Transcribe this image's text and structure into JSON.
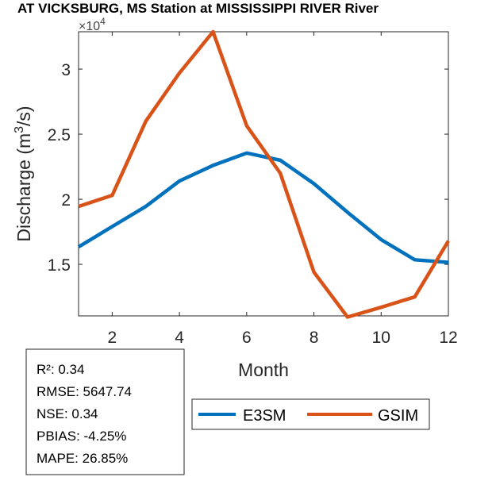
{
  "chart_data": {
    "type": "line",
    "title": "AT VICKSBURG, MS  Station at  MISSISSIPPI RIVER  River",
    "xlabel": "Month",
    "ylabel": "Discharge (m³/s)",
    "ylabel_parts": {
      "pre": "Discharge (m",
      "sup": "3",
      "post": "/s)"
    },
    "y_exponent": "×10",
    "y_exponent_power": "4",
    "xlim": [
      1,
      12
    ],
    "ylim": [
      11040,
      32870
    ],
    "xticks": [
      2,
      4,
      6,
      8,
      10,
      12
    ],
    "yticks": [
      15000,
      20000,
      25000,
      30000
    ],
    "ytick_labels": [
      "1.5",
      "2",
      "2.5",
      "3"
    ],
    "grid": false,
    "legend_position": "bottom",
    "x": [
      1,
      2,
      3,
      4,
      5,
      6,
      7,
      8,
      9,
      10,
      11,
      12
    ],
    "series": [
      {
        "name": "E3SM",
        "color": "#0072BD",
        "values": [
          16340,
          17900,
          19450,
          21400,
          22600,
          23550,
          23000,
          21200,
          19000,
          16900,
          15350,
          15150
        ]
      },
      {
        "name": "GSIM",
        "color": "#D95319",
        "values": [
          19450,
          20300,
          26000,
          29700,
          32870,
          25650,
          22000,
          14400,
          10950,
          11700,
          12500,
          16800
        ]
      }
    ],
    "stats": [
      "R²: 0.34",
      "RMSE: 5647.74",
      "NSE: 0.34",
      "PBIAS: -4.25%",
      "MAPE: 26.85%"
    ]
  }
}
